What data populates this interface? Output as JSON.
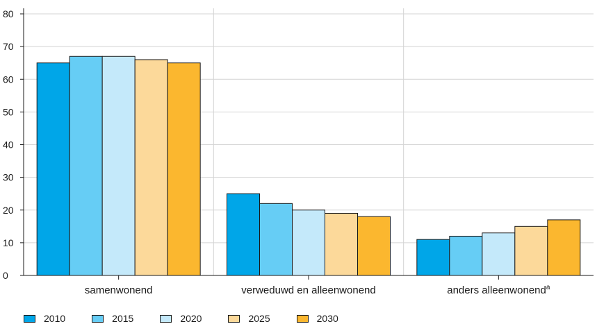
{
  "chart_data": {
    "type": "bar",
    "categories": [
      "samenwonend",
      "verweduwd en alleenwonend",
      "anders alleenwonend"
    ],
    "category_superscripts": [
      "",
      "",
      "a"
    ],
    "series": [
      {
        "name": "2010",
        "color": "#00a6e8",
        "values": [
          65,
          25,
          11
        ]
      },
      {
        "name": "2015",
        "color": "#66cdf5",
        "values": [
          67,
          22,
          12
        ]
      },
      {
        "name": "2020",
        "color": "#c4e9fa",
        "values": [
          67,
          20,
          13
        ]
      },
      {
        "name": "2025",
        "color": "#fcd99a",
        "values": [
          66,
          19,
          15
        ]
      },
      {
        "name": "2030",
        "color": "#fbb72f",
        "values": [
          65,
          18,
          17
        ]
      }
    ],
    "ylim": [
      0,
      80
    ],
    "yticks": [
      0,
      10,
      20,
      30,
      40,
      50,
      60,
      70,
      80
    ],
    "grid": true,
    "legend_position": "bottom-left",
    "title": "",
    "xlabel": "",
    "ylabel": ""
  }
}
